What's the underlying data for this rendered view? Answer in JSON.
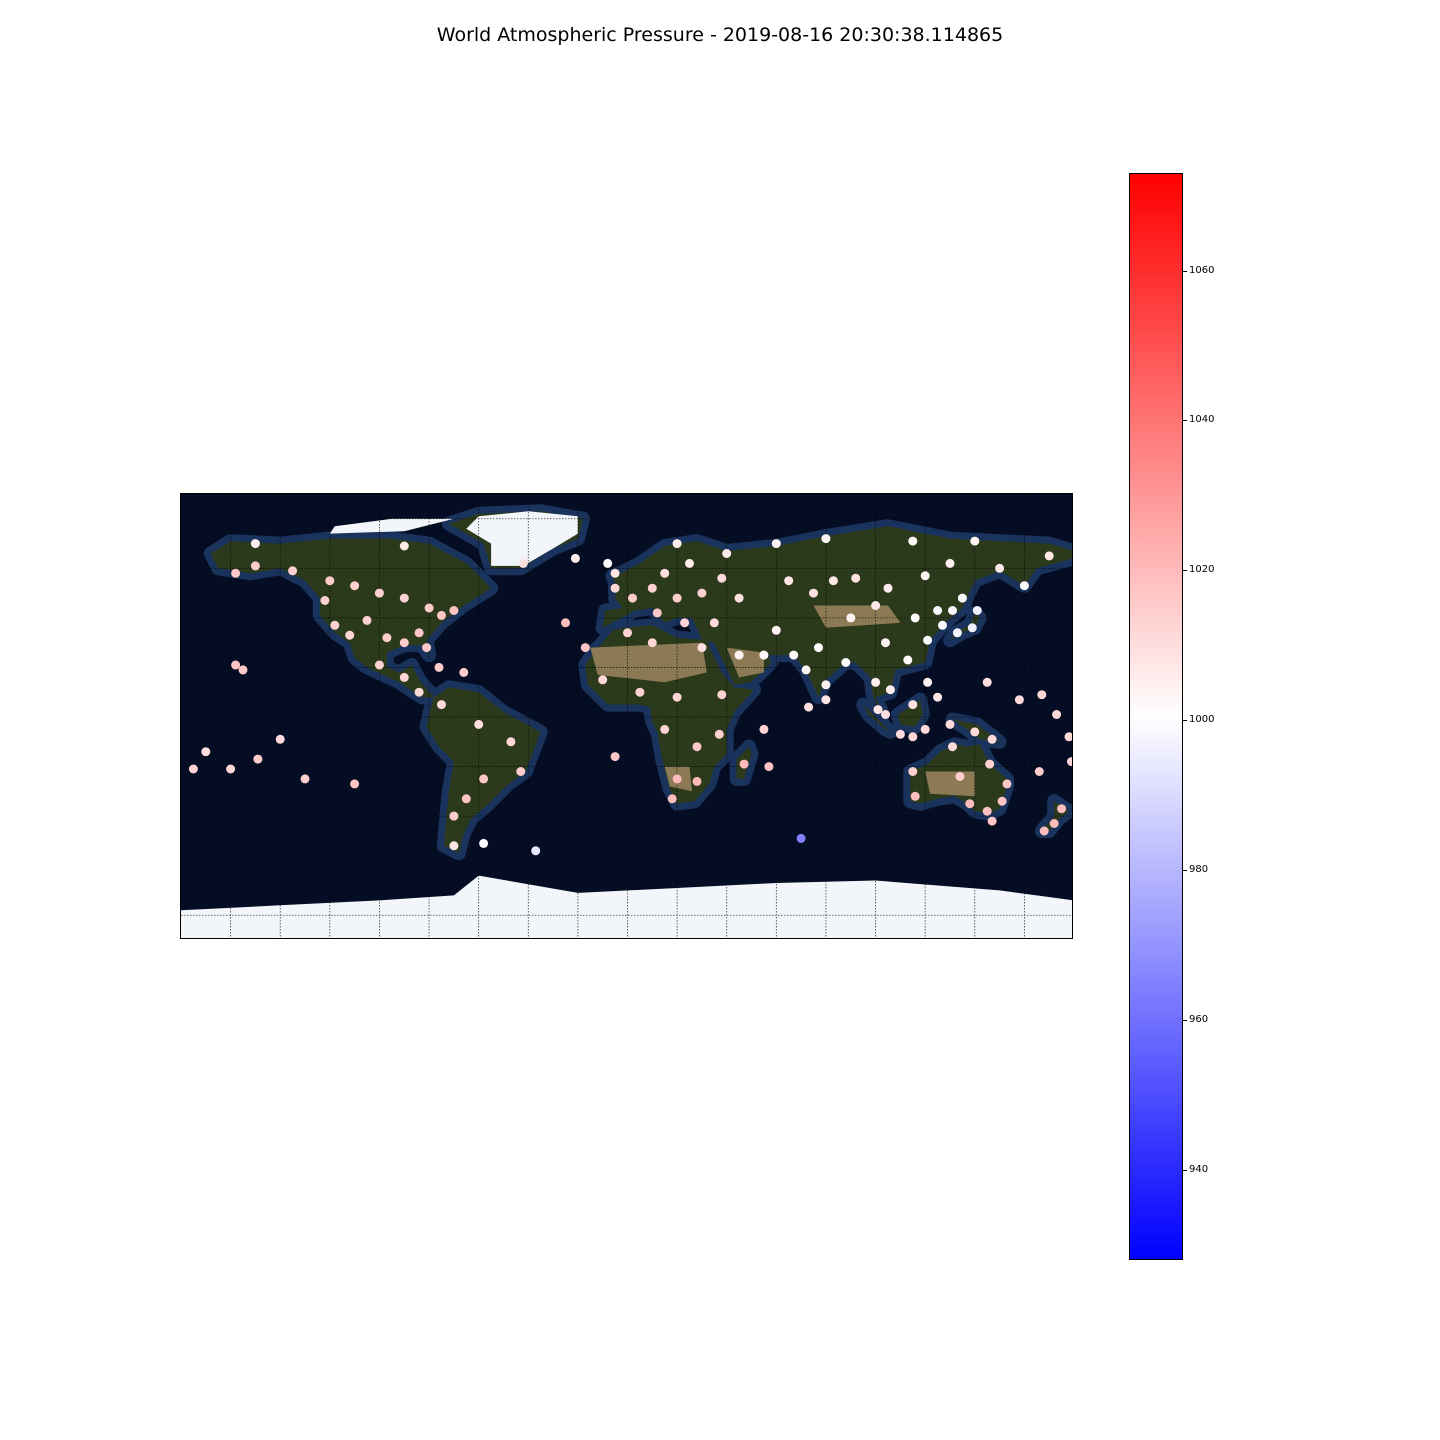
{
  "title": "World Atmospheric Pressure - 2019-08-16 20:30:38.114865",
  "map": {
    "projection": "equirectangular",
    "lon_range": [
      -180,
      180
    ],
    "lat_range": [
      -90,
      90
    ],
    "grid": true,
    "background": "satellite imagery",
    "colors": {
      "ocean_deep": "#050d24",
      "ocean_shelf": "#1d3a66",
      "land_forest": "#2c3a1c",
      "land_desert": "#8c7a55",
      "ice": "#f2f6fa"
    }
  },
  "colorbar": {
    "min": 928,
    "max": 1073,
    "ticks": [
      "940",
      "960",
      "980",
      "1000",
      "1020",
      "1040",
      "1060"
    ],
    "colors": {
      "low": "#0000ff",
      "mid": "#ffffff",
      "high": "#ff0000"
    },
    "placement": "right"
  },
  "chart_data": {
    "type": "scatter",
    "title": "World Atmospheric Pressure - 2019-08-16 20:30:38.114865",
    "x_label": "",
    "y_label": "",
    "color_label": "",
    "cmap": "bwr",
    "value_range": [
      928,
      1073
    ],
    "points": [
      {
        "lon": -158,
        "lat": 58,
        "v": 1016
      },
      {
        "lon": -150,
        "lat": 61,
        "v": 1015
      },
      {
        "lon": -135,
        "lat": 59,
        "v": 1014
      },
      {
        "lon": -120,
        "lat": 55,
        "v": 1015
      },
      {
        "lon": -110,
        "lat": 53,
        "v": 1014
      },
      {
        "lon": -100,
        "lat": 50,
        "v": 1014
      },
      {
        "lon": -90,
        "lat": 48,
        "v": 1013
      },
      {
        "lon": -80,
        "lat": 44,
        "v": 1015
      },
      {
        "lon": -75,
        "lat": 41,
        "v": 1016
      },
      {
        "lon": -70,
        "lat": 43,
        "v": 1017
      },
      {
        "lon": -122,
        "lat": 47,
        "v": 1014
      },
      {
        "lon": -118,
        "lat": 37,
        "v": 1013
      },
      {
        "lon": -112,
        "lat": 33,
        "v": 1012
      },
      {
        "lon": -105,
        "lat": 39,
        "v": 1014
      },
      {
        "lon": -97,
        "lat": 32,
        "v": 1015
      },
      {
        "lon": -90,
        "lat": 30,
        "v": 1015
      },
      {
        "lon": -84,
        "lat": 34,
        "v": 1016
      },
      {
        "lon": -81,
        "lat": 28,
        "v": 1016
      },
      {
        "lon": -100,
        "lat": 21,
        "v": 1013
      },
      {
        "lon": -90,
        "lat": 16,
        "v": 1012
      },
      {
        "lon": -84,
        "lat": 10,
        "v": 1011
      },
      {
        "lon": -76,
        "lat": 20,
        "v": 1015
      },
      {
        "lon": -66,
        "lat": 18,
        "v": 1015
      },
      {
        "lon": -158,
        "lat": 21,
        "v": 1017
      },
      {
        "lon": -155,
        "lat": 19,
        "v": 1016
      },
      {
        "lon": -75,
        "lat": 5,
        "v": 1011
      },
      {
        "lon": -60,
        "lat": -3,
        "v": 1010
      },
      {
        "lon": -47,
        "lat": -10,
        "v": 1012
      },
      {
        "lon": -43,
        "lat": -22,
        "v": 1015
      },
      {
        "lon": -58,
        "lat": -25,
        "v": 1016
      },
      {
        "lon": -65,
        "lat": -33,
        "v": 1017
      },
      {
        "lon": -70,
        "lat": -40,
        "v": 1015
      },
      {
        "lon": -70,
        "lat": -52,
        "v": 1008
      },
      {
        "lon": -58,
        "lat": -51,
        "v": 1001
      },
      {
        "lon": -37,
        "lat": -54,
        "v": 994
      },
      {
        "lon": -42,
        "lat": 62,
        "v": 1010
      },
      {
        "lon": -21,
        "lat": 64,
        "v": 1005
      },
      {
        "lon": -8,
        "lat": 62,
        "v": 1001
      },
      {
        "lon": -17,
        "lat": 28,
        "v": 1017
      },
      {
        "lon": -25,
        "lat": 38,
        "v": 1019
      },
      {
        "lon": -5,
        "lat": 52,
        "v": 1012
      },
      {
        "lon": 2,
        "lat": 48,
        "v": 1015
      },
      {
        "lon": 10,
        "lat": 52,
        "v": 1014
      },
      {
        "lon": 15,
        "lat": 58,
        "v": 1010
      },
      {
        "lon": 25,
        "lat": 62,
        "v": 1006
      },
      {
        "lon": 20,
        "lat": 48,
        "v": 1015
      },
      {
        "lon": 12,
        "lat": 42,
        "v": 1016
      },
      {
        "lon": 23,
        "lat": 38,
        "v": 1013
      },
      {
        "lon": 30,
        "lat": 50,
        "v": 1014
      },
      {
        "lon": 38,
        "lat": 56,
        "v": 1011
      },
      {
        "lon": 45,
        "lat": 48,
        "v": 1010
      },
      {
        "lon": 35,
        "lat": 38,
        "v": 1011
      },
      {
        "lon": 0,
        "lat": 34,
        "v": 1013
      },
      {
        "lon": 10,
        "lat": 30,
        "v": 1012
      },
      {
        "lon": 30,
        "lat": 28,
        "v": 1010
      },
      {
        "lon": -10,
        "lat": 15,
        "v": 1012
      },
      {
        "lon": 5,
        "lat": 10,
        "v": 1013
      },
      {
        "lon": 20,
        "lat": 8,
        "v": 1012
      },
      {
        "lon": 38,
        "lat": 9,
        "v": 1013
      },
      {
        "lon": 15,
        "lat": -5,
        "v": 1013
      },
      {
        "lon": 28,
        "lat": -12,
        "v": 1016
      },
      {
        "lon": 20,
        "lat": -25,
        "v": 1020
      },
      {
        "lon": 28,
        "lat": -26,
        "v": 1020
      },
      {
        "lon": 18,
        "lat": -33,
        "v": 1019
      },
      {
        "lon": 37,
        "lat": -7,
        "v": 1014
      },
      {
        "lon": 47,
        "lat": -19,
        "v": 1020
      },
      {
        "lon": 57,
        "lat": -20,
        "v": 1018
      },
      {
        "lon": 55,
        "lat": -5,
        "v": 1013
      },
      {
        "lon": -5,
        "lat": -16,
        "v": 1016
      },
      {
        "lon": 70,
        "lat": -49,
        "v": 965
      },
      {
        "lon": 45,
        "lat": 25,
        "v": 1004
      },
      {
        "lon": 55,
        "lat": 25,
        "v": 1002
      },
      {
        "lon": 60,
        "lat": 35,
        "v": 1004
      },
      {
        "lon": 67,
        "lat": 25,
        "v": 1001
      },
      {
        "lon": 72,
        "lat": 19,
        "v": 1003
      },
      {
        "lon": 77,
        "lat": 28,
        "v": 1000
      },
      {
        "lon": 80,
        "lat": 13,
        "v": 1005
      },
      {
        "lon": 73,
        "lat": 4,
        "v": 1009
      },
      {
        "lon": 80,
        "lat": 7,
        "v": 1008
      },
      {
        "lon": 88,
        "lat": 22,
        "v": 1001
      },
      {
        "lon": 65,
        "lat": 55,
        "v": 1008
      },
      {
        "lon": 75,
        "lat": 50,
        "v": 1009
      },
      {
        "lon": 83,
        "lat": 55,
        "v": 1008
      },
      {
        "lon": 92,
        "lat": 56,
        "v": 1009
      },
      {
        "lon": 105,
        "lat": 52,
        "v": 1006
      },
      {
        "lon": 100,
        "lat": 45,
        "v": 1007
      },
      {
        "lon": 90,
        "lat": 40,
        "v": 1004
      },
      {
        "lon": 104,
        "lat": 30,
        "v": 1004
      },
      {
        "lon": 113,
        "lat": 23,
        "v": 1002
      },
      {
        "lon": 116,
        "lat": 40,
        "v": 1001
      },
      {
        "lon": 121,
        "lat": 31,
        "v": 1000
      },
      {
        "lon": 125,
        "lat": 43,
        "v": 999
      },
      {
        "lon": 127,
        "lat": 37,
        "v": 999
      },
      {
        "lon": 133,
        "lat": 34,
        "v": 998
      },
      {
        "lon": 139,
        "lat": 36,
        "v": 996
      },
      {
        "lon": 141,
        "lat": 43,
        "v": 997
      },
      {
        "lon": 131,
        "lat": 43,
        "v": 999
      },
      {
        "lon": 135,
        "lat": 48,
        "v": 1002
      },
      {
        "lon": 120,
        "lat": 57,
        "v": 1004
      },
      {
        "lon": 130,
        "lat": 62,
        "v": 1005
      },
      {
        "lon": 150,
        "lat": 60,
        "v": 1007
      },
      {
        "lon": 160,
        "lat": 53,
        "v": 1001
      },
      {
        "lon": 170,
        "lat": 65,
        "v": 1008
      },
      {
        "lon": 100,
        "lat": 14,
        "v": 1005
      },
      {
        "lon": 106,
        "lat": 11,
        "v": 1006
      },
      {
        "lon": 101,
        "lat": 3,
        "v": 1008
      },
      {
        "lon": 104,
        "lat": 1,
        "v": 1009
      },
      {
        "lon": 110,
        "lat": -7,
        "v": 1011
      },
      {
        "lon": 115,
        "lat": -8,
        "v": 1012
      },
      {
        "lon": 121,
        "lat": 14,
        "v": 1004
      },
      {
        "lon": 125,
        "lat": 8,
        "v": 1007
      },
      {
        "lon": 115,
        "lat": 5,
        "v": 1009
      },
      {
        "lon": 120,
        "lat": -5,
        "v": 1011
      },
      {
        "lon": 130,
        "lat": -3,
        "v": 1011
      },
      {
        "lon": 140,
        "lat": -6,
        "v": 1011
      },
      {
        "lon": 147,
        "lat": -9,
        "v": 1011
      },
      {
        "lon": 145,
        "lat": 14,
        "v": 1010
      },
      {
        "lon": 158,
        "lat": 7,
        "v": 1011
      },
      {
        "lon": 167,
        "lat": 9,
        "v": 1012
      },
      {
        "lon": 173,
        "lat": 1,
        "v": 1011
      },
      {
        "lon": 178,
        "lat": -8,
        "v": 1011
      },
      {
        "lon": 179,
        "lat": -18,
        "v": 1013
      },
      {
        "lon": 166,
        "lat": -22,
        "v": 1015
      },
      {
        "lon": 116,
        "lat": -32,
        "v": 1019
      },
      {
        "lon": 115,
        "lat": -22,
        "v": 1014
      },
      {
        "lon": 131,
        "lat": -12,
        "v": 1011
      },
      {
        "lon": 134,
        "lat": -24,
        "v": 1014
      },
      {
        "lon": 138,
        "lat": -35,
        "v": 1019
      },
      {
        "lon": 145,
        "lat": -38,
        "v": 1018
      },
      {
        "lon": 151,
        "lat": -34,
        "v": 1017
      },
      {
        "lon": 153,
        "lat": -27,
        "v": 1016
      },
      {
        "lon": 146,
        "lat": -19,
        "v": 1014
      },
      {
        "lon": 147,
        "lat": -42,
        "v": 1017
      },
      {
        "lon": 175,
        "lat": -37,
        "v": 1019
      },
      {
        "lon": 172,
        "lat": -43,
        "v": 1020
      },
      {
        "lon": 168,
        "lat": -46,
        "v": 1019
      },
      {
        "lon": -170,
        "lat": -14,
        "v": 1010
      },
      {
        "lon": -175,
        "lat": -21,
        "v": 1013
      },
      {
        "lon": -160,
        "lat": -21,
        "v": 1012
      },
      {
        "lon": -149,
        "lat": -17,
        "v": 1015
      },
      {
        "lon": -140,
        "lat": -9,
        "v": 1011
      },
      {
        "lon": -130,
        "lat": -25,
        "v": 1014
      },
      {
        "lon": -110,
        "lat": -27,
        "v": 1017
      },
      {
        "lon": -5,
        "lat": 58,
        "v": 1008
      },
      {
        "lon": 20,
        "lat": 70,
        "v": 1005
      },
      {
        "lon": 40,
        "lat": 66,
        "v": 1006
      },
      {
        "lon": 60,
        "lat": 70,
        "v": 1004
      },
      {
        "lon": 80,
        "lat": 72,
        "v": 1003
      },
      {
        "lon": 115,
        "lat": 71,
        "v": 1003
      },
      {
        "lon": 140,
        "lat": 71,
        "v": 1004
      },
      {
        "lon": -150,
        "lat": 70,
        "v": 1005
      },
      {
        "lon": -90,
        "lat": 69,
        "v": 1007
      }
    ]
  }
}
